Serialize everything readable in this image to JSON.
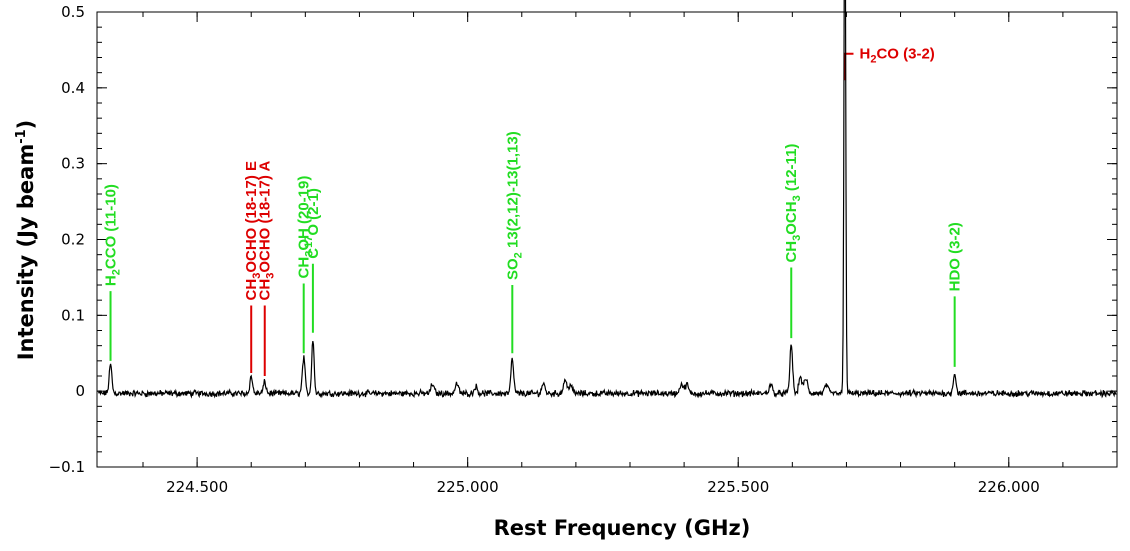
{
  "chart_data": {
    "type": "line",
    "xlabel": "Rest Frequency (GHz)",
    "ylabel": "Intensity (Jy beam",
    "ylabel_sup": "-1",
    "ylabel_end": ")",
    "xlim": [
      224.315,
      226.2
    ],
    "ylim": [
      -0.1,
      0.5
    ],
    "grid": false,
    "x_ticks": [
      {
        "value": 224.5,
        "label": "224.500"
      },
      {
        "value": 225.0,
        "label": "225.000"
      },
      {
        "value": 225.5,
        "label": "225.500"
      },
      {
        "value": 226.0,
        "label": "226.000"
      }
    ],
    "y_ticks": [
      {
        "value": -0.1,
        "label": "−0.1"
      },
      {
        "value": 0,
        "label": "0"
      },
      {
        "value": 0.1,
        "label": "0.1"
      },
      {
        "value": 0.2,
        "label": "0.2"
      },
      {
        "value": 0.3,
        "label": "0.3"
      },
      {
        "value": 0.4,
        "label": "0.4"
      },
      {
        "value": 0.5,
        "label": "0.5"
      }
    ],
    "x_minor_step": 0.1,
    "y_minor_step": 0.02,
    "colors": {
      "green": "#22dd22",
      "red": "#dd0000",
      "line": "#000000"
    },
    "peaks": [
      {
        "x": 224.34,
        "h": 0.038,
        "w": 0.0025
      },
      {
        "x": 224.6,
        "h": 0.022,
        "w": 0.0025
      },
      {
        "x": 224.625,
        "h": 0.015,
        "w": 0.0025
      },
      {
        "x": 224.697,
        "h": 0.047,
        "w": 0.0025
      },
      {
        "x": 224.714,
        "h": 0.073,
        "w": 0.0022
      },
      {
        "x": 225.0825,
        "h": 0.045,
        "w": 0.0025
      },
      {
        "x": 225.598,
        "h": 0.065,
        "w": 0.0025
      },
      {
        "x": 225.6975,
        "h": 0.405,
        "w": 0.0015
      },
      {
        "x": 225.6965,
        "h": 0.34,
        "w": 0.0015
      },
      {
        "x": 225.9,
        "h": 0.027,
        "w": 0.0025
      },
      {
        "x": 224.935,
        "h": 0.012,
        "w": 0.003
      },
      {
        "x": 224.98,
        "h": 0.013,
        "w": 0.003
      },
      {
        "x": 225.015,
        "h": 0.009,
        "w": 0.003
      },
      {
        "x": 225.14,
        "h": 0.013,
        "w": 0.003
      },
      {
        "x": 225.18,
        "h": 0.018,
        "w": 0.003
      },
      {
        "x": 225.19,
        "h": 0.012,
        "w": 0.003
      },
      {
        "x": 225.395,
        "h": 0.013,
        "w": 0.003
      },
      {
        "x": 225.405,
        "h": 0.012,
        "w": 0.003
      },
      {
        "x": 225.56,
        "h": 0.012,
        "w": 0.003
      },
      {
        "x": 225.615,
        "h": 0.022,
        "w": 0.003
      },
      {
        "x": 225.625,
        "h": 0.02,
        "w": 0.003
      },
      {
        "x": 225.663,
        "h": 0.012,
        "w": 0.003
      }
    ],
    "annotations": [
      {
        "x": 224.34,
        "peak": 0.04,
        "line_top": 0.132,
        "color": "green",
        "parts": [
          {
            "t": "H"
          },
          {
            "t": "2",
            "sub": true
          },
          {
            "t": "CCO (11-10)"
          }
        ]
      },
      {
        "x": 224.6,
        "peak": 0.024,
        "line_top": 0.113,
        "color": "red",
        "parts": [
          {
            "t": "CH"
          },
          {
            "t": "3",
            "sub": true
          },
          {
            "t": "OCHO (18-17) E"
          }
        ]
      },
      {
        "x": 224.625,
        "peak": 0.02,
        "line_top": 0.113,
        "color": "red",
        "parts": [
          {
            "t": "CH"
          },
          {
            "t": "3",
            "sub": true
          },
          {
            "t": "OCHO (18-17) A"
          }
        ]
      },
      {
        "x": 224.697,
        "peak": 0.05,
        "line_top": 0.142,
        "color": "green",
        "parts": [
          {
            "t": "CH"
          },
          {
            "t": "3",
            "sub": true
          },
          {
            "t": "OH (20-19)"
          }
        ]
      },
      {
        "x": 224.714,
        "peak": 0.077,
        "line_top": 0.168,
        "color": "green",
        "parts": [
          {
            "t": "C"
          },
          {
            "t": "17",
            "sup": true
          },
          {
            "t": "O (2-1)"
          }
        ]
      },
      {
        "x": 225.0825,
        "peak": 0.05,
        "line_top": 0.14,
        "color": "green",
        "parts": [
          {
            "t": "SO"
          },
          {
            "t": "2",
            "sub": true
          },
          {
            "t": " 13(2,12)-13(1,13)"
          }
        ]
      },
      {
        "x": 225.598,
        "peak": 0.07,
        "line_top": 0.163,
        "color": "green",
        "parts": [
          {
            "t": "CH"
          },
          {
            "t": "3",
            "sub": true
          },
          {
            "t": "OCH"
          },
          {
            "t": "3",
            "sub": true
          },
          {
            "t": " (12-11)"
          }
        ]
      },
      {
        "x": 225.9,
        "peak": 0.032,
        "line_top": 0.125,
        "color": "green",
        "parts": [
          {
            "t": "HDO (3-2)"
          }
        ]
      }
    ],
    "h2co": {
      "x": 225.6975,
      "y0": 0.41,
      "y1": 0.445,
      "x1": 225.713,
      "color": "red",
      "parts": [
        {
          "t": "H"
        },
        {
          "t": "2",
          "sub": true
        },
        {
          "t": "CO (3-2)"
        }
      ]
    }
  }
}
